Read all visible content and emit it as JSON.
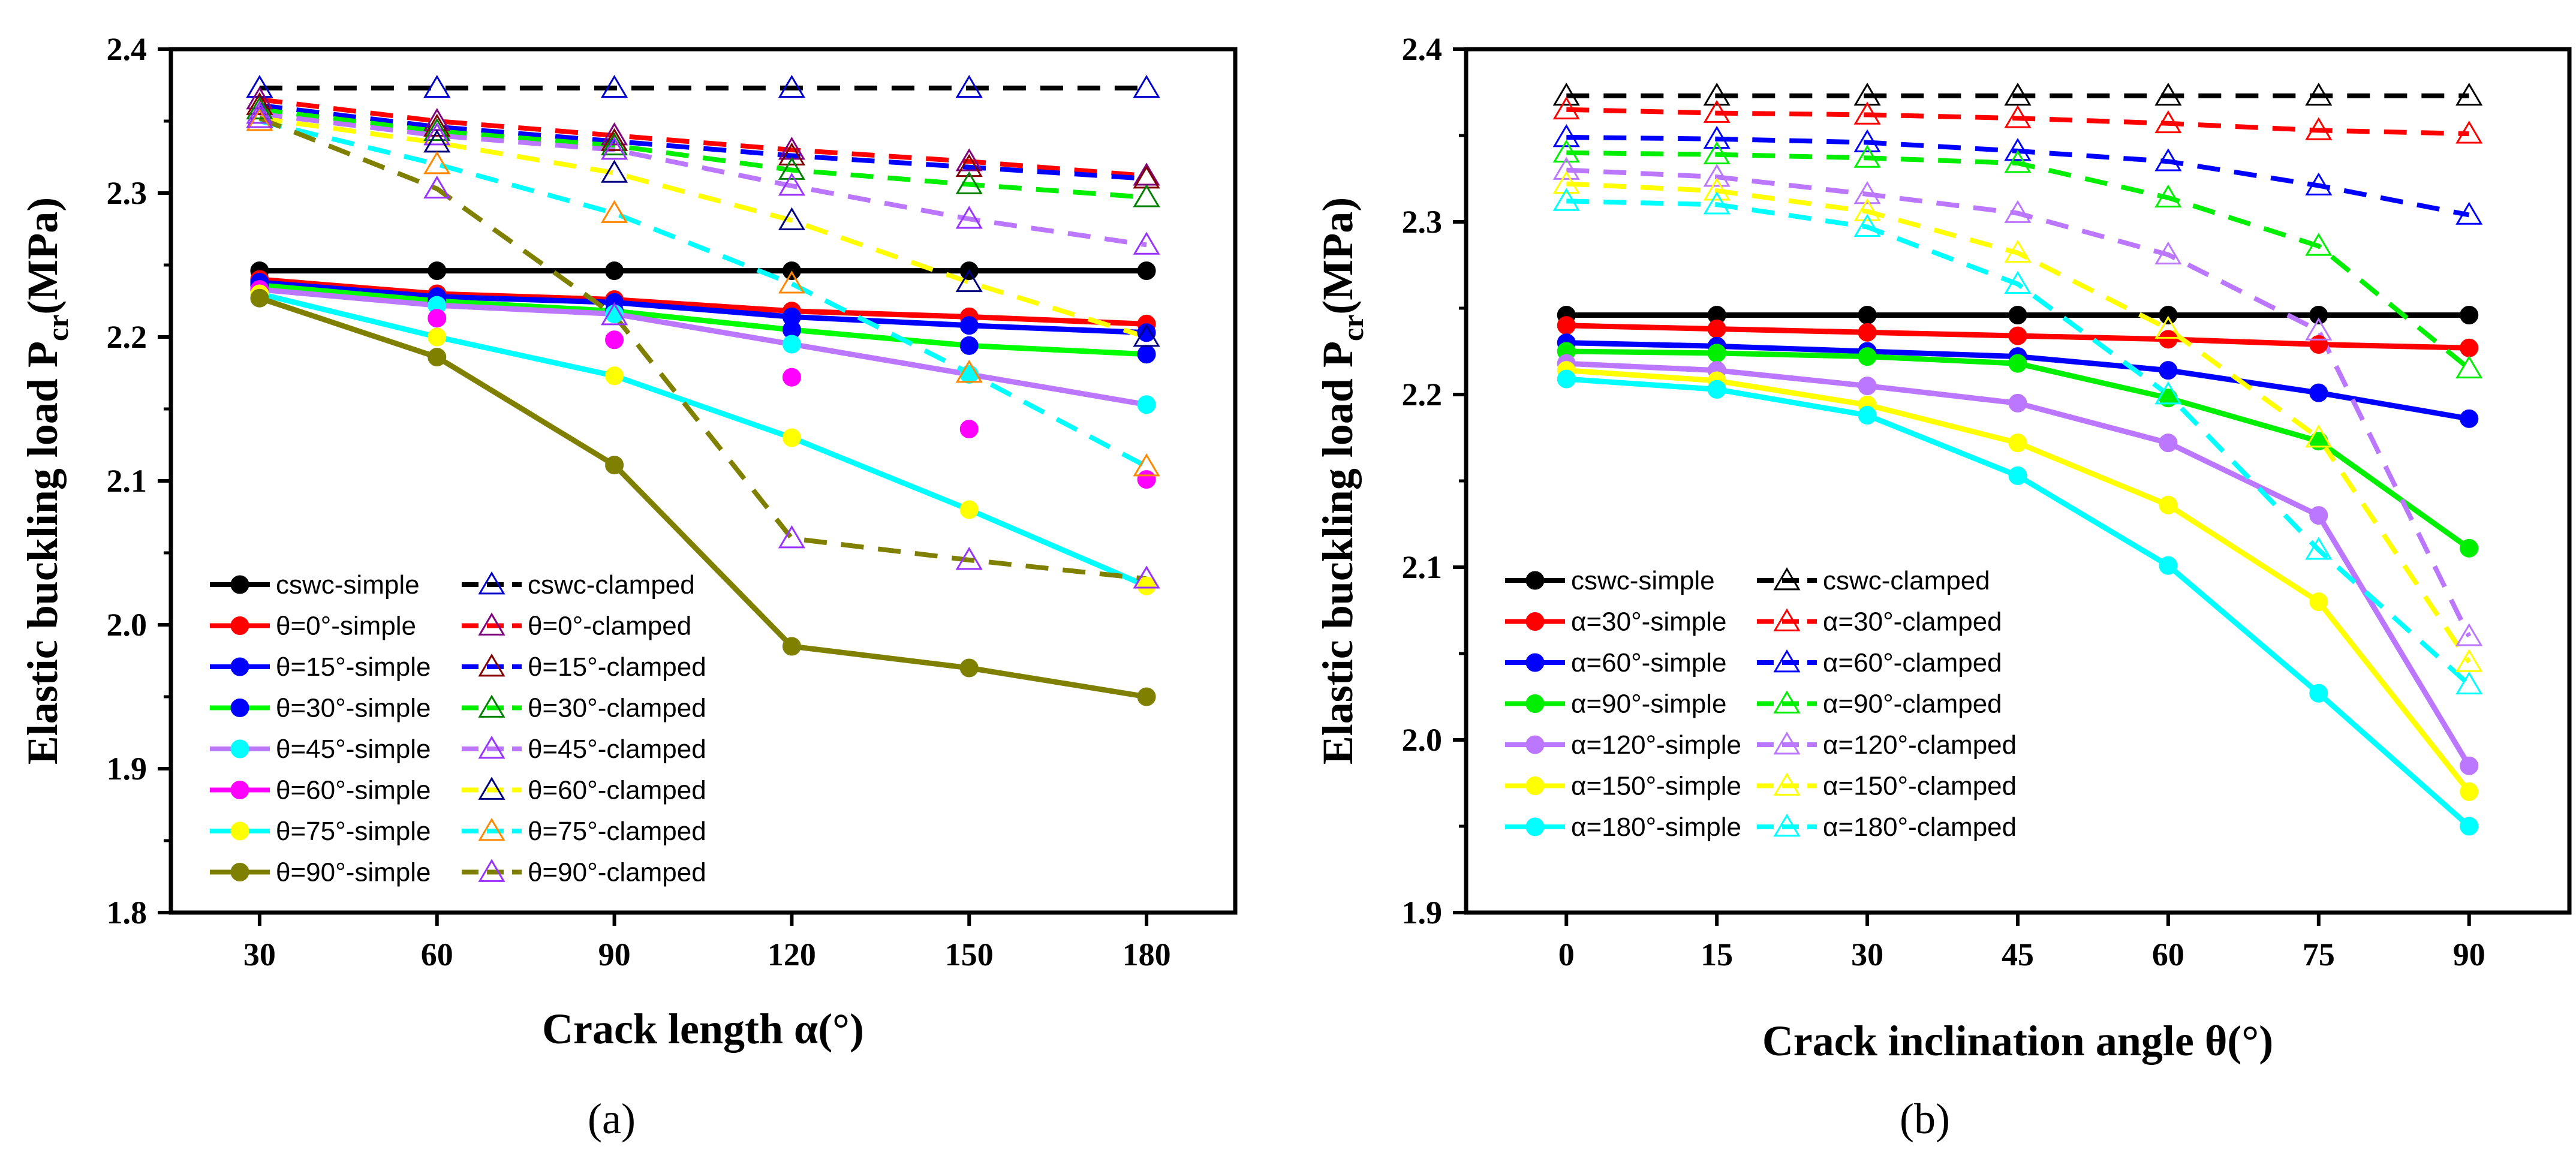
{
  "chart_data": [
    {
      "type": "line",
      "panel_label": "(a)",
      "xlabel": "Crack length α(°)",
      "ylabel_main": "Elastic buckling load P",
      "ylabel_sub": "cr",
      "ylabel_unit": "(MPa)",
      "x": [
        30,
        60,
        90,
        120,
        150,
        180
      ],
      "xlim": [
        15,
        195
      ],
      "ylim": [
        1.8,
        2.4
      ],
      "yticks": [
        "1.8",
        "1.9",
        "2.0",
        "2.1",
        "2.2",
        "2.3",
        "2.4"
      ],
      "xticks": [
        "30",
        "60",
        "90",
        "120",
        "150",
        "180"
      ],
      "legend_position": "lower-left",
      "series": [
        {
          "name": "cswc-simple",
          "color": "#000000",
          "line": "solid",
          "marker": "circle",
          "values": [
            2.246,
            2.246,
            2.246,
            2.246,
            2.246,
            2.246
          ]
        },
        {
          "name": "cswc-clamped",
          "color": "#000000",
          "line": "dashed",
          "marker": "triangle",
          "marker_color": "#0000cc",
          "values": [
            2.373,
            2.373,
            2.373,
            2.373,
            2.373,
            2.373
          ]
        },
        {
          "name": "θ=0°-simple",
          "color": "#ff0000",
          "line": "solid",
          "marker": "circle",
          "values": [
            2.24,
            2.23,
            2.226,
            2.218,
            2.214,
            2.209
          ]
        },
        {
          "name": "θ=0°-clamped",
          "color": "#ff0000",
          "line": "dashed",
          "marker": "triangle",
          "marker_color": "#800080",
          "values": [
            2.365,
            2.35,
            2.34,
            2.33,
            2.322,
            2.312
          ]
        },
        {
          "name": "θ=15°-simple",
          "color": "#0000ff",
          "line": "solid",
          "marker": "circle",
          "values": [
            2.238,
            2.228,
            2.224,
            2.214,
            2.208,
            2.203
          ]
        },
        {
          "name": "θ=15°-clamped",
          "color": "#0000ff",
          "line": "dashed",
          "marker": "triangle",
          "marker_color": "#800000",
          "values": [
            2.361,
            2.346,
            2.336,
            2.326,
            2.318,
            2.31
          ]
        },
        {
          "name": "θ=30°-simple",
          "color": "#00ff00",
          "line": "solid",
          "marker": "circle",
          "marker_color": "#0000ff",
          "values": [
            2.236,
            2.225,
            2.218,
            2.205,
            2.194,
            2.188
          ]
        },
        {
          "name": "θ=30°-clamped",
          "color": "#00ee00",
          "line": "dashed",
          "marker": "triangle",
          "marker_color": "#008000",
          "values": [
            2.358,
            2.343,
            2.333,
            2.316,
            2.306,
            2.297
          ]
        },
        {
          "name": "θ=45°-simple",
          "color": "#bb77ff",
          "line": "solid",
          "marker": "circle",
          "marker_color": "#00ffff",
          "values": [
            2.233,
            2.222,
            2.216,
            2.195,
            2.174,
            2.153
          ]
        },
        {
          "name": "θ=45°-clamped",
          "color": "#bb77ff",
          "line": "dashed",
          "marker": "triangle",
          "marker_color": "#9933ff",
          "values": [
            2.355,
            2.34,
            2.33,
            2.305,
            2.282,
            2.264
          ]
        },
        {
          "name": "θ=60°-simple",
          "color": "#ff00ff",
          "line": "none",
          "marker": "circle",
          "values": [
            2.233,
            2.213,
            2.198,
            2.172,
            2.136,
            2.101
          ]
        },
        {
          "name": "θ=60°-clamped",
          "color": "#ffff00",
          "line": "dashed",
          "marker": "triangle",
          "marker_color": "#000080",
          "values": [
            2.352,
            2.335,
            2.314,
            2.281,
            2.238,
            2.2
          ]
        },
        {
          "name": "θ=75°-simple",
          "color": "#00ffff",
          "line": "solid",
          "marker": "circle",
          "marker_color": "#ffff00",
          "values": [
            2.23,
            2.2,
            2.173,
            2.13,
            2.08,
            2.027
          ]
        },
        {
          "name": "θ=75°-clamped",
          "color": "#00ffff",
          "line": "dashed",
          "marker": "triangle",
          "marker_color": "#ff8800",
          "values": [
            2.35,
            2.32,
            2.286,
            2.237,
            2.175,
            2.11
          ]
        },
        {
          "name": "θ=90°-simple",
          "color": "#808000",
          "line": "solid",
          "marker": "circle",
          "values": [
            2.227,
            2.186,
            2.111,
            1.985,
            1.97,
            1.95
          ]
        },
        {
          "name": "θ=90°-clamped",
          "color": "#808000",
          "line": "dashed",
          "marker": "triangle",
          "marker_color": "#9933ff",
          "values": [
            2.352,
            2.303,
            2.215,
            2.06,
            2.045,
            2.032
          ]
        }
      ]
    },
    {
      "type": "line",
      "panel_label": "(b)",
      "xlabel": "Crack inclination angle θ(°)",
      "ylabel_main": "Elastic buckling load P",
      "ylabel_sub": "cr",
      "ylabel_unit": "(MPa)",
      "x": [
        0,
        15,
        30,
        45,
        60,
        75,
        90
      ],
      "xlim": [
        -10,
        100
      ],
      "ylim": [
        1.9,
        2.4
      ],
      "yticks": [
        "1.9",
        "2.0",
        "2.1",
        "2.2",
        "2.3",
        "2.4"
      ],
      "xticks": [
        "0",
        "15",
        "30",
        "45",
        "60",
        "75",
        "90"
      ],
      "legend_position": "lower-left",
      "series": [
        {
          "name": "cswc-simple",
          "color": "#000000",
          "line": "solid",
          "marker": "circle",
          "values": [
            2.246,
            2.246,
            2.246,
            2.246,
            2.246,
            2.246,
            2.246
          ]
        },
        {
          "name": "cswc-clamped",
          "color": "#000000",
          "line": "dashed",
          "marker": "triangle",
          "values": [
            2.373,
            2.373,
            2.373,
            2.373,
            2.373,
            2.373,
            2.373
          ]
        },
        {
          "name": "α=30°-simple",
          "color": "#ff0000",
          "line": "solid",
          "marker": "circle",
          "values": [
            2.24,
            2.238,
            2.236,
            2.234,
            2.232,
            2.229,
            2.227
          ]
        },
        {
          "name": "α=30°-clamped",
          "color": "#ff0000",
          "line": "dashed",
          "marker": "triangle",
          "values": [
            2.365,
            2.363,
            2.362,
            2.36,
            2.357,
            2.353,
            2.351
          ]
        },
        {
          "name": "α=60°-simple",
          "color": "#0000ff",
          "line": "solid",
          "marker": "circle",
          "values": [
            2.23,
            2.228,
            2.225,
            2.222,
            2.214,
            2.201,
            2.186
          ]
        },
        {
          "name": "α=60°-clamped",
          "color": "#0000ff",
          "line": "dashed",
          "marker": "triangle",
          "values": [
            2.349,
            2.348,
            2.346,
            2.341,
            2.335,
            2.321,
            2.304
          ]
        },
        {
          "name": "α=90°-simple",
          "color": "#00ee00",
          "line": "solid",
          "marker": "circle",
          "values": [
            2.225,
            2.224,
            2.222,
            2.218,
            2.198,
            2.173,
            2.111
          ]
        },
        {
          "name": "α=90°-clamped",
          "color": "#00ee00",
          "line": "dashed",
          "marker": "triangle",
          "values": [
            2.34,
            2.339,
            2.337,
            2.334,
            2.314,
            2.286,
            2.215
          ]
        },
        {
          "name": "α=120°-simple",
          "color": "#bb77ff",
          "line": "solid",
          "marker": "circle",
          "values": [
            2.218,
            2.214,
            2.205,
            2.195,
            2.172,
            2.13,
            1.985
          ]
        },
        {
          "name": "α=120°-clamped",
          "color": "#bb77ff",
          "line": "dashed",
          "marker": "triangle",
          "values": [
            2.33,
            2.326,
            2.316,
            2.305,
            2.281,
            2.237,
            2.06
          ]
        },
        {
          "name": "α=150°-simple",
          "color": "#ffff00",
          "line": "solid",
          "marker": "circle",
          "values": [
            2.214,
            2.208,
            2.194,
            2.172,
            2.136,
            2.08,
            1.97
          ]
        },
        {
          "name": "α=150°-clamped",
          "color": "#ffff00",
          "line": "dashed",
          "marker": "triangle",
          "values": [
            2.322,
            2.318,
            2.306,
            2.282,
            2.238,
            2.175,
            2.045
          ]
        },
        {
          "name": "α=180°-simple",
          "color": "#00ffff",
          "line": "solid",
          "marker": "circle",
          "values": [
            2.209,
            2.203,
            2.188,
            2.153,
            2.101,
            2.027,
            1.95
          ]
        },
        {
          "name": "α=180°-clamped",
          "color": "#00ffff",
          "line": "dashed",
          "marker": "triangle",
          "values": [
            2.312,
            2.31,
            2.297,
            2.264,
            2.2,
            2.11,
            2.032
          ]
        }
      ]
    }
  ]
}
